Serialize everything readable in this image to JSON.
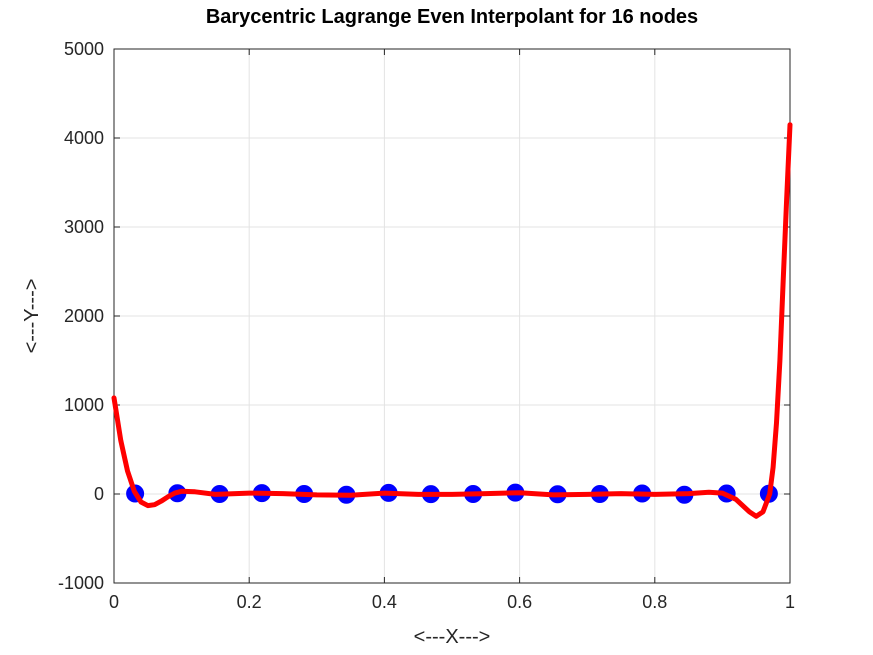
{
  "chart_data": {
    "type": "line",
    "title": "Barycentric Lagrange Even Interpolant for 16 nodes",
    "xlabel": "<---X--->",
    "ylabel": "<---Y--->",
    "xlim": [
      0,
      1
    ],
    "ylim": [
      -1000,
      5000
    ],
    "xticks": [
      0,
      0.2,
      0.4,
      0.6,
      0.8,
      1
    ],
    "xtick_labels": [
      "0",
      "0.2",
      "0.4",
      "0.6",
      "0.8",
      "1"
    ],
    "yticks": [
      -1000,
      0,
      1000,
      2000,
      3000,
      4000,
      5000
    ],
    "ytick_labels": [
      "-1000",
      "0",
      "1000",
      "2000",
      "3000",
      "4000",
      "5000"
    ],
    "grid": true,
    "series": [
      {
        "kind": "scatter",
        "color": "#0000ff",
        "x": [
          0.03125,
          0.09375,
          0.15625,
          0.21875,
          0.28125,
          0.34375,
          0.40625,
          0.46875,
          0.53125,
          0.59375,
          0.65625,
          0.71875,
          0.78125,
          0.84375,
          0.90625,
          0.96875
        ],
        "y": [
          5,
          8,
          0,
          10,
          0,
          -8,
          12,
          -2,
          0,
          15,
          -3,
          0,
          6,
          -8,
          5,
          3
        ]
      },
      {
        "kind": "line",
        "color": "#ff0000",
        "x": [
          0,
          0.01,
          0.02,
          0.03,
          0.04,
          0.05,
          0.06,
          0.07,
          0.08,
          0.09,
          0.1,
          0.12,
          0.15,
          0.2,
          0.25,
          0.3,
          0.35,
          0.4,
          0.45,
          0.5,
          0.55,
          0.6,
          0.65,
          0.7,
          0.75,
          0.8,
          0.85,
          0.88,
          0.9,
          0.92,
          0.94,
          0.95,
          0.96,
          0.97,
          0.975,
          0.98,
          0.985,
          0.99,
          0.995,
          1.0
        ],
        "y": [
          1080,
          600,
          260,
          30,
          -90,
          -130,
          -120,
          -80,
          -30,
          10,
          30,
          25,
          -5,
          10,
          5,
          -10,
          -15,
          10,
          -5,
          -5,
          5,
          15,
          -10,
          -5,
          5,
          -5,
          5,
          20,
          10,
          -60,
          -200,
          -250,
          -200,
          0,
          300,
          800,
          1500,
          2400,
          3300,
          4150
        ]
      }
    ]
  }
}
